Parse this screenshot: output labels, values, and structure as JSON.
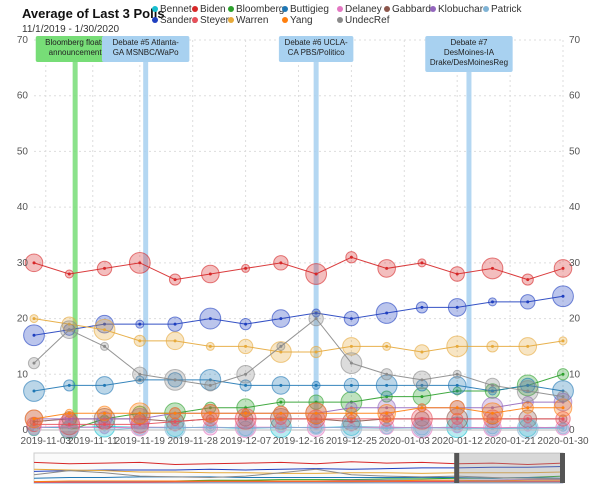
{
  "chart_data": {
    "type": "line",
    "title": "Average of Last 3 Polls",
    "subtitle": "11/1/2019 - 1/30/2020",
    "ylim": [
      0,
      70
    ],
    "yticks": [
      0,
      10,
      20,
      30,
      40,
      50,
      60,
      70
    ],
    "x_start": "2019-11-01",
    "x_end": "2020-01-30",
    "xticks": [
      "2019-11-03",
      "2019-11-11",
      "2019-11-19",
      "2019-11-28",
      "2019-12-07",
      "2019-12-16",
      "2019-12-25",
      "2020-01-03",
      "2020-01-12",
      "2020-01-21",
      "2020-01-30"
    ],
    "grid": true,
    "legend_position": "top",
    "series": [
      {
        "name": "Bennet",
        "color": "#17becf",
        "values": [
          0.5,
          0.4,
          0.6,
          0.5,
          0.4,
          0.5,
          0.3,
          0.5,
          0.4,
          0.6,
          0.5,
          0.4,
          0.5,
          0.3,
          0.4,
          0.5
        ]
      },
      {
        "name": "Biden",
        "color": "#d62728",
        "values": [
          30,
          28,
          29,
          30,
          27,
          28,
          29,
          30,
          28,
          31,
          29,
          30,
          28,
          29,
          27,
          29
        ]
      },
      {
        "name": "Bloomberg",
        "color": "#2ca02c",
        "values": [
          0,
          0,
          2,
          3,
          3,
          4,
          4,
          5,
          5,
          5,
          6,
          6,
          7,
          7,
          8,
          10
        ]
      },
      {
        "name": "Buttigieg",
        "color": "#1f77b4",
        "values": [
          7,
          8,
          8,
          9,
          9,
          9,
          8,
          8,
          8,
          8,
          8,
          8,
          8,
          7,
          8,
          7
        ]
      },
      {
        "name": "Delaney",
        "color": "#e377c2",
        "values": [
          0.5,
          0.6,
          0.4,
          0.5,
          0.5,
          0.4,
          0.5,
          0.5,
          0.4,
          0.5,
          0.5,
          0.4,
          0.5,
          0.4,
          0.5,
          0.4
        ]
      },
      {
        "name": "Gabbard",
        "color": "#8c564b",
        "values": [
          1.5,
          2,
          2,
          2,
          1.5,
          2,
          2,
          2,
          2,
          1.5,
          2,
          2,
          2,
          2,
          2,
          2
        ]
      },
      {
        "name": "Klobuchar",
        "color": "#9467bd",
        "values": [
          2,
          2,
          2,
          2,
          3,
          3,
          3,
          3,
          3,
          4,
          4,
          4,
          4,
          4,
          5,
          5
        ]
      },
      {
        "name": "Patrick",
        "color": "#7fb3d5",
        "values": [
          0,
          0,
          0,
          0.4,
          0.4,
          0.5,
          0.4,
          0.4,
          0.5,
          0.4,
          0.3,
          0.4,
          0.3,
          0.3,
          0.3,
          0.3
        ]
      },
      {
        "name": "Sanders",
        "color": "#1f3fbf",
        "values": [
          17,
          18,
          19,
          19,
          19,
          20,
          19,
          20,
          21,
          20,
          21,
          22,
          22,
          23,
          23,
          24
        ]
      },
      {
        "name": "Steyer",
        "color": "#e8505b",
        "values": [
          1,
          1,
          1,
          1,
          1.5,
          2,
          2,
          2,
          2,
          2,
          2,
          2,
          2,
          2,
          2,
          2
        ]
      },
      {
        "name": "Warren",
        "color": "#e6a93a",
        "values": [
          20,
          19,
          18,
          16,
          16,
          15,
          15,
          14,
          14,
          15,
          15,
          14,
          15,
          15,
          15,
          16
        ]
      },
      {
        "name": "Yang",
        "color": "#ff7f0e",
        "values": [
          2,
          3,
          3,
          3,
          3,
          3,
          3,
          3,
          3,
          3,
          3,
          4,
          4,
          3,
          4,
          4
        ]
      },
      {
        "name": "UndecRef",
        "color": "#8a8a8a",
        "values": [
          12,
          18,
          15,
          10,
          9,
          8,
          10,
          15,
          20,
          12,
          10,
          9,
          10,
          8,
          7,
          6
        ]
      }
    ],
    "x_dates": [
      "2019-11-01",
      "2019-11-07",
      "2019-11-13",
      "2019-11-19",
      "2019-11-25",
      "2019-12-01",
      "2019-12-07",
      "2019-12-13",
      "2019-12-19",
      "2019-12-25",
      "2019-12-31",
      "2020-01-06",
      "2020-01-12",
      "2020-01-18",
      "2020-01-24",
      "2020-01-30"
    ],
    "annotations": [
      {
        "date": "2019-11-08",
        "color": "#77dd77",
        "text": [
          "Bloomberg floats",
          "announcement"
        ]
      },
      {
        "date": "2019-11-20",
        "color": "#a8d1f0",
        "text": [
          "Debate #5 Atlanta-",
          "GA MSNBC/WaPo"
        ]
      },
      {
        "date": "2019-12-19",
        "color": "#a8d1f0",
        "text": [
          "Debate #6 UCLA-",
          "CA PBS/Politico"
        ]
      },
      {
        "date": "2020-01-14",
        "color": "#a8d1f0",
        "text": [
          "Debate #7",
          "DesMoines-IA",
          "Drake/DesMoinesReg"
        ]
      }
    ]
  }
}
